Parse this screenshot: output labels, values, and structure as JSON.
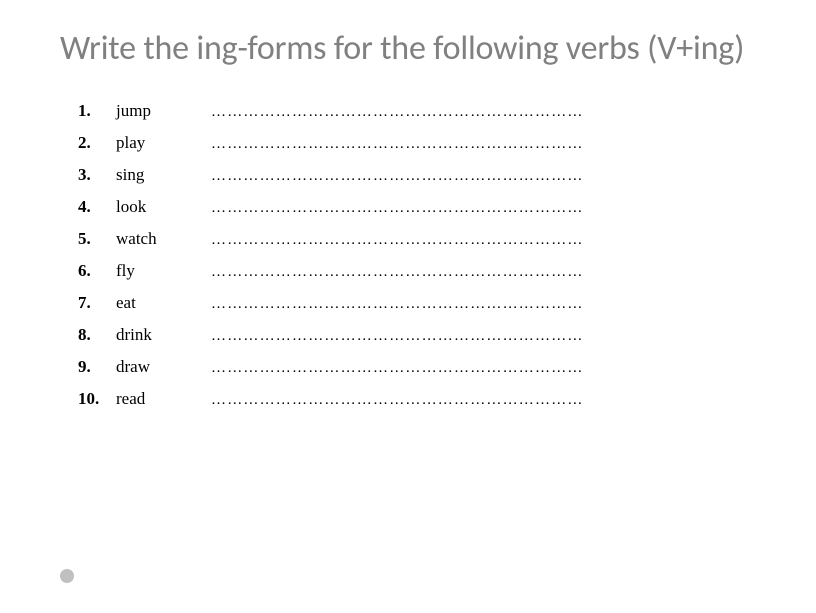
{
  "title": "Write the ing-forms for the following verbs (V+ing)",
  "dots": "…………………………………………………………………",
  "items": [
    {
      "num": "1.",
      "verb": "jump"
    },
    {
      "num": "2.",
      "verb": "play"
    },
    {
      "num": "3.",
      "verb": "sing"
    },
    {
      "num": "4.",
      "verb": "look"
    },
    {
      "num": "5.",
      "verb": "watch"
    },
    {
      "num": "6.",
      "verb": "fly"
    },
    {
      "num": "7.",
      "verb": "eat"
    },
    {
      "num": "8.",
      "verb": "drink"
    },
    {
      "num": "9.",
      "verb": "draw"
    },
    {
      "num": "10.",
      "verb": "read"
    }
  ],
  "colors": {
    "title_color": "#808080",
    "text_color": "#000000",
    "background": "#ffffff",
    "bullet": "#c0c0c0"
  },
  "typography": {
    "title_fontsize": 34,
    "title_weight": 400,
    "list_fontsize": 17,
    "number_weight": 700,
    "verb_weight": 400,
    "title_font": "Calibri",
    "list_font": "Georgia"
  }
}
